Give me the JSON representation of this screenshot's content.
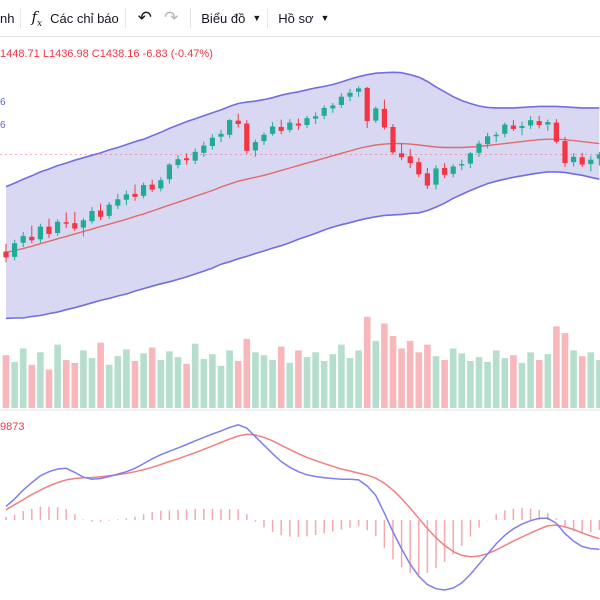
{
  "toolbar": {
    "cut_item_label": "nh",
    "indicators_label": "Các chỉ báo",
    "chart_label": "Biểu đồ",
    "profile_label": "Hồ sơ"
  },
  "legend": {
    "high": "1448.71",
    "low_label": "L",
    "low": "1436.98",
    "close_label": "C",
    "close": "1438.16",
    "change": "-6.83 (-0.47%)"
  },
  "bollinger_labels": [
    "6",
    "6"
  ],
  "macd_label": "9873",
  "colors": {
    "up": "#22ab94",
    "down": "#f23645",
    "band_line": "#6f6fe0",
    "band_fill": "#b8b8e8",
    "basis": "#e06b6b",
    "volume_up": "#b5dfcc",
    "volume_down": "#f7b7bb",
    "macd_line": "#7f7fee",
    "signal_line": "#f08080"
  },
  "chart_data": {
    "type": "candlestick",
    "note_y_units": "price",
    "price_range": [
      1400,
      1452
    ],
    "candles": [
      [
        1413.2,
        1414.8,
        1411.0,
        1412.0
      ],
      [
        1412.1,
        1415.6,
        1411.4,
        1414.9
      ],
      [
        1415.0,
        1417.2,
        1414.1,
        1416.4
      ],
      [
        1416.2,
        1418.5,
        1414.9,
        1415.5
      ],
      [
        1415.7,
        1418.9,
        1415.0,
        1418.3
      ],
      [
        1418.3,
        1419.9,
        1416.0,
        1416.8
      ],
      [
        1417.0,
        1419.8,
        1416.4,
        1419.3
      ],
      [
        1419.2,
        1421.2,
        1418.0,
        1418.9
      ],
      [
        1419.0,
        1421.3,
        1417.4,
        1417.9
      ],
      [
        1418.1,
        1420.0,
        1416.3,
        1419.6
      ],
      [
        1419.4,
        1422.3,
        1418.9,
        1421.5
      ],
      [
        1421.6,
        1423.0,
        1419.6,
        1420.3
      ],
      [
        1420.5,
        1423.3,
        1419.9,
        1422.8
      ],
      [
        1422.6,
        1425.0,
        1421.9,
        1423.9
      ],
      [
        1423.8,
        1425.7,
        1422.7,
        1424.9
      ],
      [
        1425.0,
        1426.9,
        1423.6,
        1424.4
      ],
      [
        1424.6,
        1427.3,
        1424.1,
        1426.8
      ],
      [
        1426.9,
        1427.9,
        1425.4,
        1425.9
      ],
      [
        1426.1,
        1428.4,
        1425.5,
        1427.8
      ],
      [
        1428.0,
        1431.3,
        1427.1,
        1431.0
      ],
      [
        1430.9,
        1432.9,
        1430.2,
        1432.1
      ],
      [
        1432.3,
        1433.3,
        1431.0,
        1431.9
      ],
      [
        1431.8,
        1434.3,
        1431.1,
        1433.6
      ],
      [
        1433.4,
        1435.7,
        1432.6,
        1434.9
      ],
      [
        1434.8,
        1437.2,
        1434.1,
        1436.5
      ],
      [
        1436.7,
        1438.1,
        1435.6,
        1437.3
      ],
      [
        1437.1,
        1440.3,
        1436.5,
        1440.1
      ],
      [
        1440.0,
        1441.4,
        1438.6,
        1439.3
      ],
      [
        1439.4,
        1440.1,
        1433.2,
        1433.8
      ],
      [
        1433.9,
        1436.1,
        1432.6,
        1435.6
      ],
      [
        1435.8,
        1437.6,
        1435.0,
        1437.1
      ],
      [
        1437.3,
        1439.7,
        1436.9,
        1438.8
      ],
      [
        1438.7,
        1440.2,
        1437.2,
        1437.9
      ],
      [
        1438.1,
        1440.3,
        1437.6,
        1439.6
      ],
      [
        1439.4,
        1440.4,
        1438.1,
        1439.0
      ],
      [
        1439.1,
        1441.0,
        1438.5,
        1440.5
      ],
      [
        1440.4,
        1441.7,
        1439.3,
        1440.9
      ],
      [
        1441.0,
        1443.1,
        1440.3,
        1442.6
      ],
      [
        1442.5,
        1443.6,
        1441.6,
        1443.1
      ],
      [
        1443.2,
        1445.6,
        1442.6,
        1444.9
      ],
      [
        1444.9,
        1446.5,
        1444.0,
        1445.7
      ],
      [
        1445.9,
        1447.0,
        1444.9,
        1446.6
      ],
      [
        1446.7,
        1446.9,
        1438.5,
        1439.9
      ],
      [
        1440.0,
        1442.9,
        1439.5,
        1442.5
      ],
      [
        1442.4,
        1444.3,
        1438.2,
        1438.6
      ],
      [
        1438.7,
        1439.3,
        1433.0,
        1433.5
      ],
      [
        1433.3,
        1435.4,
        1431.9,
        1432.5
      ],
      [
        1432.7,
        1434.2,
        1430.3,
        1431.3
      ],
      [
        1431.5,
        1432.4,
        1428.4,
        1429.0
      ],
      [
        1429.2,
        1430.3,
        1426.0,
        1426.7
      ],
      [
        1426.9,
        1430.9,
        1425.9,
        1430.2
      ],
      [
        1430.3,
        1431.3,
        1428.2,
        1428.9
      ],
      [
        1429.1,
        1431.1,
        1428.4,
        1430.6
      ],
      [
        1430.8,
        1432.0,
        1429.9,
        1431.1
      ],
      [
        1431.2,
        1433.6,
        1430.3,
        1433.3
      ],
      [
        1433.4,
        1435.9,
        1432.6,
        1435.3
      ],
      [
        1435.2,
        1437.5,
        1434.3,
        1436.8
      ],
      [
        1436.8,
        1437.7,
        1435.6,
        1437.1
      ],
      [
        1437.3,
        1439.6,
        1436.6,
        1439.2
      ],
      [
        1439.0,
        1440.1,
        1437.9,
        1438.3
      ],
      [
        1438.5,
        1439.8,
        1437.0,
        1438.9
      ],
      [
        1439.0,
        1440.9,
        1438.3,
        1440.1
      ],
      [
        1439.9,
        1441.0,
        1438.4,
        1439.1
      ],
      [
        1439.2,
        1440.2,
        1437.9,
        1439.7
      ],
      [
        1439.6,
        1440.3,
        1435.3,
        1435.7
      ],
      [
        1435.8,
        1436.7,
        1430.5,
        1431.3
      ],
      [
        1431.5,
        1433.3,
        1430.6,
        1432.6
      ],
      [
        1432.5,
        1433.4,
        1430.5,
        1431.0
      ],
      [
        1431.1,
        1432.8,
        1429.6,
        1432.0
      ],
      [
        1432.2,
        1433.6,
        1430.8,
        1433.1
      ]
    ],
    "bollinger_upper": [
      1426.5,
      1427.2,
      1428.0,
      1428.7,
      1429.5,
      1430.1,
      1430.8,
      1431.3,
      1431.9,
      1432.4,
      1432.9,
      1433.4,
      1434.0,
      1434.5,
      1435.1,
      1435.7,
      1436.2,
      1436.9,
      1437.6,
      1438.4,
      1439.1,
      1439.8,
      1440.4,
      1441.0,
      1441.6,
      1442.2,
      1442.9,
      1443.5,
      1443.8,
      1444.0,
      1444.3,
      1444.7,
      1445.2,
      1445.6,
      1445.9,
      1446.3,
      1446.7,
      1447.0,
      1447.4,
      1447.9,
      1448.5,
      1449.0,
      1449.4,
      1449.7,
      1449.8,
      1449.9,
      1449.8,
      1449.4,
      1448.9,
      1448.0,
      1446.9,
      1445.9,
      1444.9,
      1444.1,
      1443.5,
      1443.0,
      1442.7,
      1442.6,
      1442.6,
      1442.6,
      1442.7,
      1442.8,
      1442.9,
      1442.9,
      1442.9,
      1442.8,
      1442.7,
      1442.6,
      1442.6,
      1442.6
    ],
    "bollinger_basis": [
      1413.0,
      1413.4,
      1413.8,
      1414.3,
      1414.8,
      1415.3,
      1415.8,
      1416.3,
      1416.8,
      1417.3,
      1417.8,
      1418.3,
      1418.8,
      1419.3,
      1419.8,
      1420.4,
      1420.9,
      1421.5,
      1422.1,
      1422.7,
      1423.3,
      1423.9,
      1424.5,
      1425.1,
      1425.7,
      1426.4,
      1427.0,
      1427.6,
      1428.0,
      1428.4,
      1428.8,
      1429.3,
      1429.8,
      1430.3,
      1430.8,
      1431.3,
      1431.8,
      1432.3,
      1432.8,
      1433.3,
      1433.8,
      1434.3,
      1434.7,
      1435.0,
      1435.2,
      1435.3,
      1435.3,
      1435.2,
      1435.0,
      1434.8,
      1434.6,
      1434.5,
      1434.5,
      1434.5,
      1434.6,
      1434.7,
      1434.9,
      1435.1,
      1435.3,
      1435.5,
      1435.7,
      1435.9,
      1436.1,
      1436.2,
      1436.2,
      1436.1,
      1435.9,
      1435.7,
      1435.5,
      1435.3
    ],
    "bollinger_lower": [
      1399.5,
      1399.6,
      1399.6,
      1399.9,
      1400.1,
      1400.5,
      1400.8,
      1401.3,
      1401.7,
      1402.2,
      1402.7,
      1403.2,
      1403.6,
      1404.1,
      1404.5,
      1405.1,
      1405.6,
      1406.1,
      1406.6,
      1407.0,
      1407.5,
      1408.0,
      1408.6,
      1409.2,
      1409.8,
      1410.6,
      1411.1,
      1411.7,
      1412.2,
      1412.8,
      1413.3,
      1413.9,
      1414.4,
      1415.0,
      1415.7,
      1416.3,
      1416.9,
      1417.6,
      1418.2,
      1418.7,
      1419.1,
      1419.6,
      1420.0,
      1420.3,
      1420.6,
      1420.7,
      1420.8,
      1421.0,
      1421.1,
      1421.6,
      1422.3,
      1423.1,
      1424.1,
      1424.9,
      1425.7,
      1426.4,
      1427.1,
      1427.6,
      1428.0,
      1428.4,
      1428.7,
      1429.0,
      1429.3,
      1429.5,
      1429.5,
      1429.4,
      1429.1,
      1428.8,
      1428.4,
      1428.0
    ],
    "volume": [
      55,
      48,
      62,
      45,
      58,
      40,
      66,
      50,
      47,
      60,
      52,
      68,
      45,
      54,
      61,
      49,
      57,
      63,
      50,
      59,
      53,
      46,
      67,
      51,
      56,
      44,
      60,
      49,
      72,
      58,
      55,
      50,
      64,
      47,
      60,
      53,
      58,
      49,
      56,
      66,
      52,
      60,
      95,
      70,
      88,
      75,
      62,
      70,
      58,
      66,
      54,
      50,
      62,
      57,
      49,
      53,
      48,
      60,
      52,
      55,
      47,
      58,
      50,
      56,
      85,
      78,
      60,
      54,
      58,
      50
    ],
    "macd": [
      0.4,
      0.62,
      0.88,
      1.1,
      1.3,
      1.42,
      1.5,
      1.52,
      1.4,
      1.26,
      1.2,
      1.22,
      1.28,
      1.35,
      1.42,
      1.52,
      1.66,
      1.8,
      1.92,
      2.02,
      2.12,
      2.22,
      2.33,
      2.43,
      2.53,
      2.62,
      2.72,
      2.8,
      2.7,
      2.45,
      2.2,
      1.95,
      1.72,
      1.55,
      1.42,
      1.33,
      1.28,
      1.24,
      1.22,
      1.2,
      1.2,
      1.18,
      1.0,
      0.72,
      0.2,
      -0.35,
      -0.85,
      -1.3,
      -1.65,
      -1.9,
      -2.02,
      -2.06,
      -2.0,
      -1.85,
      -1.6,
      -1.3,
      -1.0,
      -0.7,
      -0.45,
      -0.26,
      -0.12,
      -0.02,
      0.05,
      0.05,
      -0.1,
      -0.4,
      -0.62,
      -0.78,
      -0.84,
      -0.86
    ],
    "signal": [
      0.3,
      0.45,
      0.6,
      0.75,
      0.88,
      1.0,
      1.1,
      1.18,
      1.22,
      1.24,
      1.25,
      1.27,
      1.3,
      1.33,
      1.37,
      1.42,
      1.48,
      1.55,
      1.63,
      1.72,
      1.8,
      1.89,
      1.98,
      2.08,
      2.18,
      2.28,
      2.38,
      2.47,
      2.52,
      2.5,
      2.43,
      2.33,
      2.2,
      2.07,
      1.95,
      1.84,
      1.75,
      1.66,
      1.58,
      1.5,
      1.44,
      1.38,
      1.32,
      1.23,
      1.08,
      0.88,
      0.63,
      0.35,
      0.05,
      -0.25,
      -0.52,
      -0.75,
      -0.93,
      -1.04,
      -1.08,
      -1.06,
      -0.99,
      -0.88,
      -0.75,
      -0.62,
      -0.5,
      -0.38,
      -0.27,
      -0.17,
      -0.15,
      -0.2,
      -0.28,
      -0.38,
      -0.47,
      -0.55
    ]
  }
}
